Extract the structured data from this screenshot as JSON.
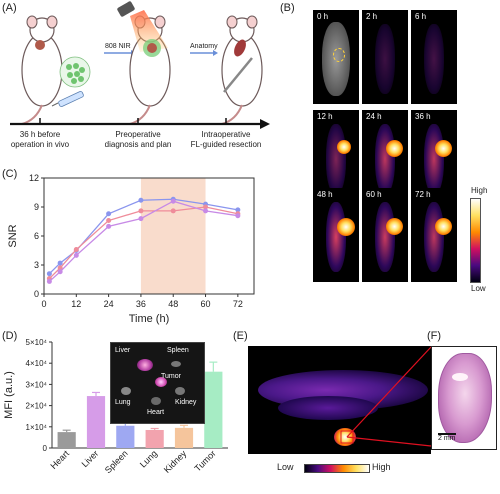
{
  "panels": {
    "A": "(A)",
    "B": "(B)",
    "C": "(C)",
    "D": "(D)",
    "E": "(E)",
    "F": "(F)"
  },
  "panel_a": {
    "laser_label": "808 NIR",
    "anatomy_label": "Anatomy",
    "timeline": [
      {
        "line1": "36 h before",
        "line2": "operation in vivo"
      },
      {
        "line1": "Preoperative",
        "line2": "diagnosis and plan"
      },
      {
        "line1": "Intraoperative",
        "line2": "FL-guided resection"
      }
    ]
  },
  "panel_b": {
    "times": [
      "0 h",
      "2 h",
      "6 h",
      "12 h",
      "24 h",
      "36 h",
      "48 h",
      "60 h",
      "72 h"
    ],
    "intensity": [
      0.0,
      0.15,
      0.2,
      0.55,
      0.85,
      0.85,
      0.95,
      0.9,
      0.85
    ],
    "colorbar_high": "High",
    "colorbar_low": "Low"
  },
  "panel_e": {
    "colorbar_low": "Low",
    "colorbar_high": "High"
  },
  "panel_f": {
    "scale_label": "2 mm"
  },
  "chart_data": [
    {
      "type": "line",
      "xlabel": "Time (h)",
      "ylabel": "SNR",
      "xlim": [
        0,
        78
      ],
      "ylim": [
        0,
        12
      ],
      "xticks": [
        0,
        12,
        24,
        36,
        48,
        60,
        72
      ],
      "yticks": [
        0,
        3,
        6,
        9,
        12
      ],
      "highlight_range": [
        36,
        60
      ],
      "highlight_color": "#f9dccc",
      "series": [
        {
          "color": "#8a95ee",
          "x": [
            2,
            6,
            12,
            24,
            36,
            48,
            60,
            72
          ],
          "y": [
            2.1,
            3.2,
            4.5,
            8.3,
            9.7,
            9.8,
            9.3,
            8.7
          ]
        },
        {
          "color": "#ef8c9a",
          "x": [
            2,
            6,
            12,
            24,
            36,
            48,
            60,
            72
          ],
          "y": [
            1.6,
            2.7,
            4.6,
            7.6,
            8.6,
            8.6,
            9.0,
            8.3
          ]
        },
        {
          "color": "#c78ae6",
          "x": [
            2,
            6,
            12,
            24,
            36,
            48,
            60,
            72
          ],
          "y": [
            1.3,
            2.3,
            4.0,
            7.0,
            7.8,
            9.6,
            8.6,
            8.1
          ]
        }
      ]
    },
    {
      "type": "bar",
      "ylabel": "MFI (a.u.)",
      "ylim": [
        0,
        50000
      ],
      "yticks": [
        0,
        10000,
        20000,
        30000,
        40000,
        50000
      ],
      "ytick_labels": [
        "0",
        "1×10⁴",
        "2×10⁴",
        "3×10⁴",
        "4×10⁴",
        "5×10⁴"
      ],
      "categories": [
        "Heart",
        "Liver",
        "Spleen",
        "Lung",
        "Kidney",
        "Tumor"
      ],
      "values": [
        7500,
        24500,
        10500,
        8500,
        9500,
        36000
      ],
      "errors": [
        900,
        1700,
        1500,
        700,
        1200,
        4500
      ],
      "colors": [
        "#9a9a9a",
        "#d69ce8",
        "#9ea8f2",
        "#f2a3ae",
        "#f5c59c",
        "#a6ecc4"
      ],
      "inset_labels": [
        "Liver",
        "Spleen",
        "Tumor",
        "Lung",
        "Kidney",
        "Heart"
      ]
    }
  ]
}
